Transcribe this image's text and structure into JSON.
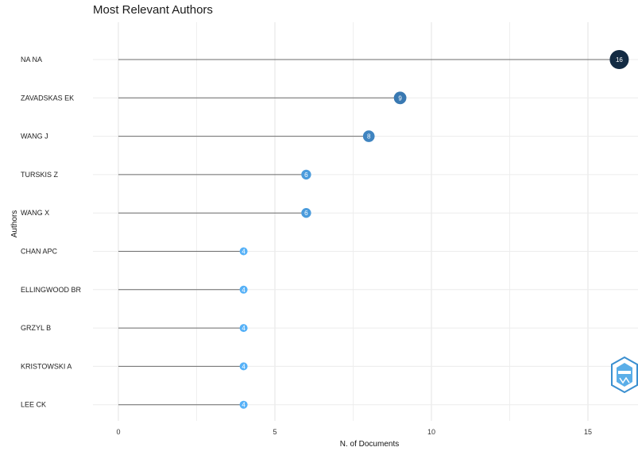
{
  "chart_data": {
    "type": "lollipop",
    "title": "Most Relevant Authors",
    "xlabel": "N. of Documents",
    "ylabel": "Authors",
    "xlim": [
      -0.8,
      16.4
    ],
    "xticks": [
      0,
      5,
      10,
      15
    ],
    "grid": true,
    "categories": [
      "NA NA",
      "ZAVADSKAS EK",
      "WANG J",
      "TURSKIS Z",
      "WANG X",
      "CHAN APC",
      "ELLINGWOOD BR",
      "GRZYL B",
      "KRISTOWSKI A",
      "LEE CK"
    ],
    "values": [
      16,
      9,
      8,
      6,
      6,
      4,
      4,
      4,
      4,
      4
    ],
    "color_scale": {
      "low": "#56B1F7",
      "mid": "#3A7BB5",
      "high": "#132B43"
    }
  }
}
